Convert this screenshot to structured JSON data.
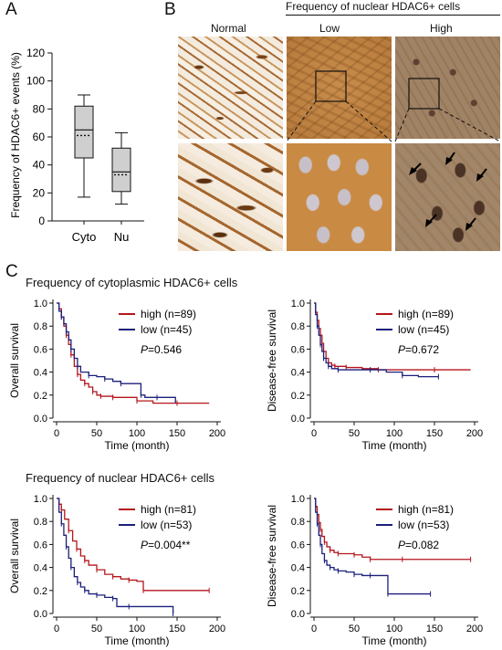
{
  "panels": {
    "a": "A",
    "b": "B",
    "c": "C"
  },
  "panel_a": {
    "ylabel": "Frequency of HDAC6+ events (%)",
    "yticks": [
      "0",
      "20",
      "40",
      "60",
      "80",
      "100",
      "120"
    ],
    "categories": [
      "Cyto",
      "Nu"
    ]
  },
  "panel_b": {
    "header": "Frequency of nuclear HDAC6+ cells",
    "col_normal": "Normal",
    "col_low": "Low",
    "col_high": "High"
  },
  "panel_c": {
    "section_cyto": "Frequency of cytoplasmic HDAC6+ cells",
    "section_nuc": "Frequency of nuclear HDAC6+ cells",
    "xlabel": "Time (month)",
    "ylabel_os": "Overall survival",
    "ylabel_dfs": "Disease-free survival",
    "xticks": [
      "0",
      "50",
      "100",
      "150",
      "200"
    ],
    "yticks": [
      "0.0",
      "0.2",
      "0.4",
      "0.6",
      "0.8",
      "1.0"
    ],
    "plots": [
      {
        "legend_high": "high (n=89)",
        "legend_low": "low (n=45)",
        "p_label": "P",
        "p_value": "=0.546"
      },
      {
        "legend_high": "high (n=89)",
        "legend_low": "low (n=45)",
        "p_label": "P",
        "p_value": "=0.672"
      },
      {
        "legend_high": "high (n=81)",
        "legend_low": "low (n=53)",
        "p_label": "P",
        "p_value": "=0.004**"
      },
      {
        "legend_high": "high (n=81)",
        "legend_low": "low (n=53)",
        "p_label": "P",
        "p_value": "=0.082"
      }
    ]
  },
  "colors": {
    "high": "#b5151b",
    "low": "#1b1f7a",
    "box_fill": "#cfcfcf"
  },
  "chart_data": [
    {
      "type": "box",
      "ylabel": "Frequency of HDAC6+ events (%)",
      "ylim": [
        0,
        120
      ],
      "categories": [
        "Cyto",
        "Nu"
      ],
      "boxes": [
        {
          "name": "Cyto",
          "whisker_low": 17,
          "q1": 45,
          "median": 65,
          "mean": 61,
          "q3": 82,
          "whisker_high": 90
        },
        {
          "name": "Nu",
          "whisker_low": 12,
          "q1": 21,
          "median": 35,
          "mean": 33,
          "q3": 52,
          "whisker_high": 63
        }
      ]
    },
    {
      "type": "line",
      "title": "Frequency of cytoplasmic HDAC6+ cells",
      "xlabel": "Time (month)",
      "ylabel": "Overall survival",
      "xlim": [
        0,
        200
      ],
      "ylim": [
        0,
        1.0
      ],
      "series": [
        {
          "name": "high (n=89)",
          "x": [
            0,
            3,
            6,
            9,
            12,
            15,
            18,
            22,
            26,
            30,
            35,
            40,
            45,
            50,
            55,
            60,
            70,
            80,
            100,
            120,
            150,
            190
          ],
          "y": [
            1.0,
            0.95,
            0.88,
            0.8,
            0.72,
            0.64,
            0.55,
            0.45,
            0.38,
            0.33,
            0.3,
            0.27,
            0.23,
            0.2,
            0.19,
            0.19,
            0.18,
            0.18,
            0.15,
            0.13,
            0.13,
            0.13
          ]
        },
        {
          "name": "low (n=45)",
          "x": [
            0,
            3,
            6,
            9,
            12,
            15,
            18,
            22,
            26,
            30,
            40,
            50,
            60,
            70,
            80,
            95,
            105,
            110,
            125,
            148
          ],
          "y": [
            1.0,
            0.93,
            0.88,
            0.82,
            0.75,
            0.68,
            0.6,
            0.52,
            0.45,
            0.4,
            0.37,
            0.36,
            0.34,
            0.32,
            0.3,
            0.3,
            0.2,
            0.18,
            0.18,
            0.13
          ]
        }
      ]
    },
    {
      "type": "line",
      "title": "Frequency of cytoplasmic HDAC6+ cells",
      "xlabel": "Time (month)",
      "ylabel": "Disease-free survival",
      "xlim": [
        0,
        200
      ],
      "ylim": [
        0,
        1.0
      ],
      "series": [
        {
          "name": "high (n=89)",
          "x": [
            0,
            2,
            4,
            6,
            8,
            10,
            12,
            15,
            18,
            22,
            26,
            30,
            40,
            60,
            80,
            100,
            150,
            195
          ],
          "y": [
            1.0,
            0.92,
            0.85,
            0.78,
            0.72,
            0.65,
            0.58,
            0.52,
            0.48,
            0.46,
            0.45,
            0.45,
            0.44,
            0.43,
            0.42,
            0.42,
            0.42,
            0.42
          ]
        },
        {
          "name": "low (n=45)",
          "x": [
            0,
            2,
            4,
            6,
            8,
            10,
            12,
            15,
            18,
            22,
            30,
            50,
            70,
            90,
            110,
            130,
            155
          ],
          "y": [
            1.0,
            0.9,
            0.8,
            0.72,
            0.64,
            0.58,
            0.52,
            0.48,
            0.45,
            0.43,
            0.42,
            0.42,
            0.42,
            0.4,
            0.37,
            0.36,
            0.36
          ]
        }
      ]
    },
    {
      "type": "line",
      "title": "Frequency of nuclear HDAC6+ cells",
      "xlabel": "Time (month)",
      "ylabel": "Overall survival",
      "xlim": [
        0,
        200
      ],
      "ylim": [
        0,
        1.0
      ],
      "series": [
        {
          "name": "high (n=81)",
          "x": [
            0,
            3,
            6,
            10,
            15,
            20,
            25,
            30,
            35,
            40,
            50,
            60,
            70,
            80,
            90,
            100,
            108,
            150,
            190
          ],
          "y": [
            1.0,
            0.95,
            0.9,
            0.82,
            0.72,
            0.63,
            0.56,
            0.5,
            0.46,
            0.42,
            0.38,
            0.34,
            0.32,
            0.3,
            0.29,
            0.28,
            0.2,
            0.2,
            0.2
          ]
        },
        {
          "name": "low (n=53)",
          "x": [
            0,
            3,
            6,
            9,
            12,
            15,
            18,
            22,
            26,
            30,
            35,
            40,
            50,
            60,
            70,
            75,
            90,
            110,
            145
          ],
          "y": [
            1.0,
            0.88,
            0.78,
            0.68,
            0.58,
            0.48,
            0.4,
            0.32,
            0.27,
            0.23,
            0.2,
            0.17,
            0.16,
            0.14,
            0.13,
            0.06,
            0.06,
            0.06,
            0.0
          ]
        }
      ]
    },
    {
      "type": "line",
      "title": "Frequency of nuclear HDAC6+ cells",
      "xlabel": "Time (month)",
      "ylabel": "Disease-free survival",
      "xlim": [
        0,
        200
      ],
      "ylim": [
        0,
        1.0
      ],
      "series": [
        {
          "name": "high (n=81)",
          "x": [
            0,
            2,
            4,
            6,
            8,
            10,
            13,
            16,
            20,
            25,
            30,
            40,
            50,
            60,
            70,
            90,
            110,
            150,
            195
          ],
          "y": [
            1.0,
            0.93,
            0.86,
            0.79,
            0.73,
            0.67,
            0.62,
            0.58,
            0.55,
            0.53,
            0.52,
            0.52,
            0.51,
            0.49,
            0.47,
            0.47,
            0.47,
            0.47,
            0.47
          ]
        },
        {
          "name": "low (n=53)",
          "x": [
            0,
            2,
            4,
            6,
            8,
            10,
            13,
            16,
            20,
            25,
            30,
            40,
            50,
            60,
            70,
            80,
            92,
            110,
            145
          ],
          "y": [
            1.0,
            0.88,
            0.78,
            0.68,
            0.6,
            0.52,
            0.46,
            0.42,
            0.4,
            0.38,
            0.37,
            0.36,
            0.34,
            0.33,
            0.33,
            0.33,
            0.17,
            0.17,
            0.17
          ]
        }
      ]
    }
  ]
}
